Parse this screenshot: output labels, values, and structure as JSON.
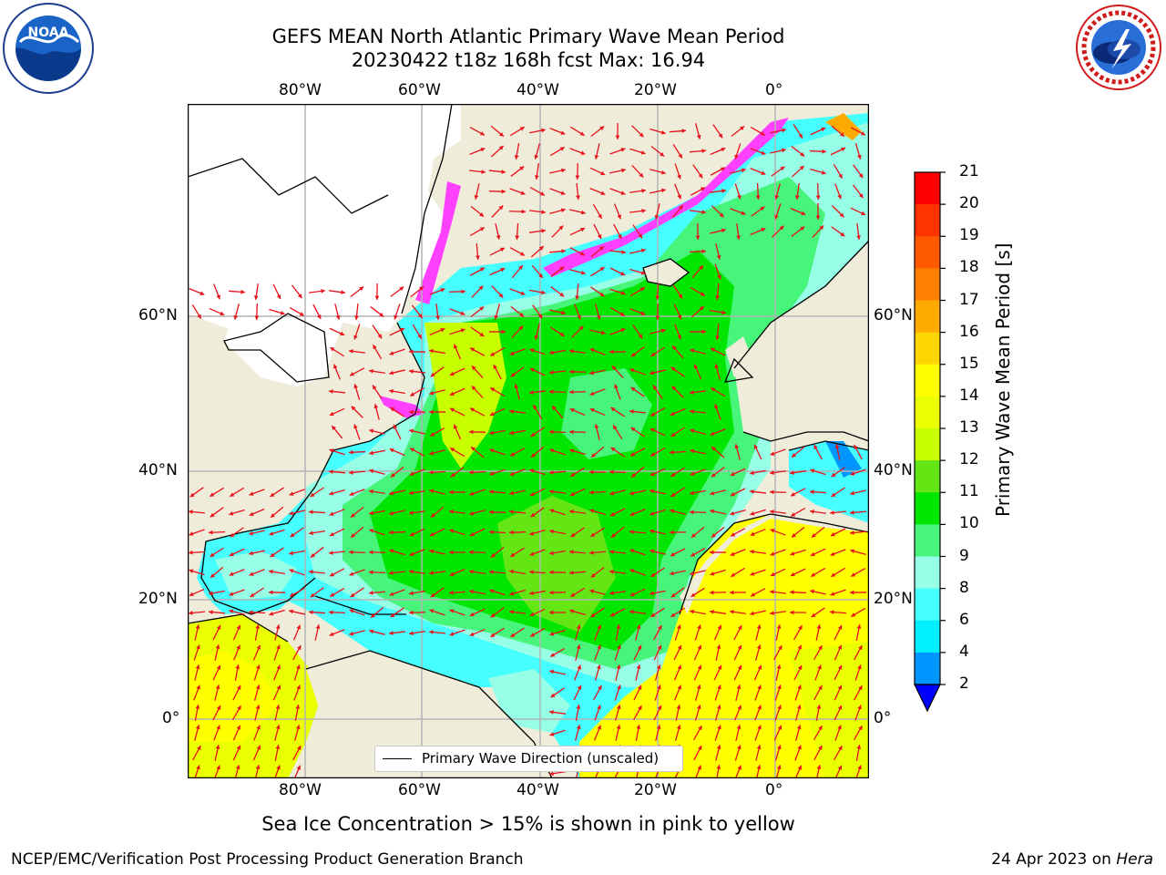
{
  "title": {
    "line1": "GEFS MEAN North Atlantic Primary Wave Mean Period",
    "line2": "20230422 t18z 168h fcst   Max: 16.94"
  },
  "logos": {
    "left": {
      "name": "noaa-logo",
      "text": "NOAA"
    },
    "right": {
      "name": "national-weather-service-logo"
    }
  },
  "map": {
    "top_lon_labels": [
      "80°W",
      "60°W",
      "40°W",
      "20°W",
      "0°"
    ],
    "bottom_lon_labels": [
      "80°W",
      "60°W",
      "40°W",
      "20°W",
      "0°"
    ],
    "left_lat_labels": [
      "60°N",
      "40°N",
      "20°N",
      "0°"
    ],
    "right_lat_labels": [
      "60°N",
      "40°N",
      "20°N",
      "0°"
    ],
    "legend_label": "Primary Wave Direction (unscaled)",
    "arrow_color": "#e8101a",
    "land_color": "#efedda",
    "grid_color": "#b4b4b4"
  },
  "colorbar": {
    "title": "Primary Wave Mean Period [s]",
    "ticks": [
      "21",
      "20",
      "19",
      "18",
      "17",
      "16",
      "15",
      "14",
      "13",
      "12",
      "11",
      "10",
      "9",
      "8",
      "6",
      "4",
      "2"
    ],
    "colors": [
      "#ff0000",
      "#ff3300",
      "#ff5a00",
      "#ff8000",
      "#ffaa00",
      "#ffd500",
      "#ffff00",
      "#eaff00",
      "#c8ff00",
      "#64e614",
      "#00e600",
      "#46f57a",
      "#96ffe6",
      "#46ffff",
      "#00f0ff",
      "#0096ff",
      "#0000ff"
    ]
  },
  "bottom_note": "Sea Ice Concentration > 15% is shown in pink to yellow",
  "footer": {
    "left": "NCEP/EMC/Verification Post Processing Product Generation Branch",
    "right_date": "24 Apr 2023 on ",
    "right_host": "Hera"
  }
}
